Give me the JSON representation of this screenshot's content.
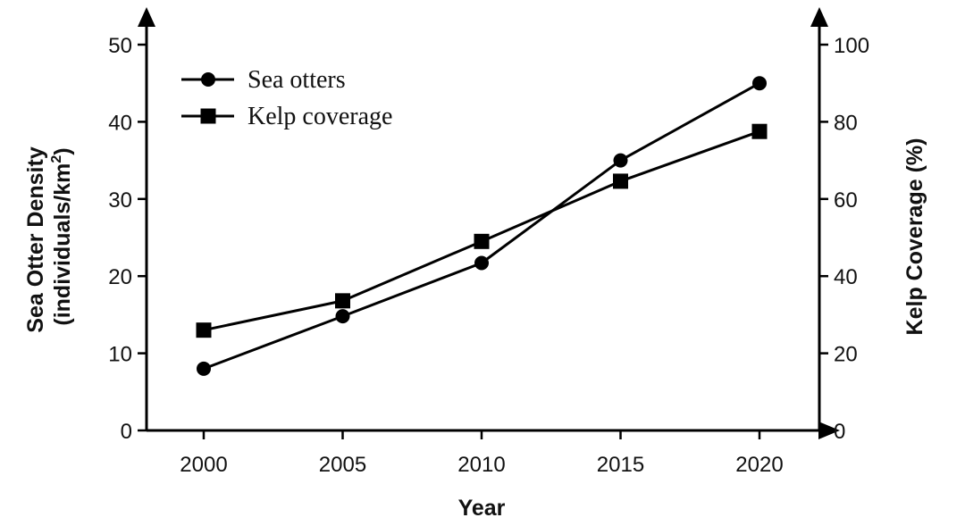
{
  "chart_data": {
    "type": "line",
    "x": [
      2000,
      2005,
      2010,
      2015,
      2020
    ],
    "xlabel": "Year",
    "ylabel_left_line1": "Sea Otter Density",
    "ylabel_left_line2": "(individuals/km",
    "ylabel_left_sup": "2",
    "ylabel_left_close": ")",
    "ylabel_right": "Kelp Coverage (%)",
    "ylim_left": [
      0,
      50
    ],
    "ylim_right": [
      0,
      100
    ],
    "left_ticks": [
      0,
      10,
      20,
      30,
      40,
      50
    ],
    "right_ticks": [
      0,
      20,
      40,
      60,
      80,
      100
    ],
    "x_ticks": [
      2000,
      2005,
      2010,
      2015,
      2020
    ],
    "legend_position": "top-left",
    "grid": false,
    "series": [
      {
        "name": "Sea otters",
        "axis": "left",
        "marker": "circle",
        "values": [
          8,
          14.8,
          21.7,
          35,
          45
        ]
      },
      {
        "name": "Kelp coverage",
        "axis": "right",
        "marker": "square",
        "values": [
          26,
          33.6,
          49,
          64.6,
          77.5
        ]
      }
    ],
    "colors": {
      "line": "#000000",
      "axis": "#000000"
    }
  }
}
